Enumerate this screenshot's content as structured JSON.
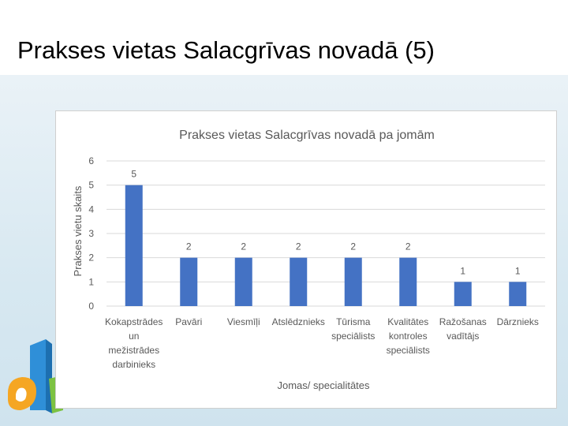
{
  "slide": {
    "title": "Prakses vietas Salacgrīvas novadā (5)"
  },
  "colors": {
    "bar": "#4472c4",
    "grid": "#d9d9d9",
    "axis_text": "#595959",
    "title_text": "#595959"
  },
  "decoration_icon": "colorful-number-graphic-icon",
  "chart_data": {
    "type": "bar",
    "title": "Prakses vietas Salacgrīvas novadā pa jomām",
    "xlabel": "Jomas/ specialitātes",
    "ylabel": "Prakses vietu skaits",
    "ylim": [
      0,
      6
    ],
    "yticks": [
      0,
      1,
      2,
      3,
      4,
      5,
      6
    ],
    "grid": true,
    "legend": "none",
    "categories": [
      "Kokapstrādes un mežistrādes darbinieks",
      "Pavāri",
      "Viesmīļi",
      "Atslēdznieks",
      "Tūrisma speciālists",
      "Kvalitātes kontroles speciālists",
      "Ražošanas vadītājs",
      "Dārznieks"
    ],
    "category_lines": [
      [
        "Kokapstrādes",
        "un",
        "mežistrādes",
        "darbinieks"
      ],
      [
        "Pavāri"
      ],
      [
        "Viesmīļi"
      ],
      [
        "Atslēdznieks"
      ],
      [
        "Tūrisma",
        "speciālists"
      ],
      [
        "Kvalitātes",
        "kontroles",
        "speciālists"
      ],
      [
        "Ražošanas",
        "vadītājs"
      ],
      [
        "Dārznieks"
      ]
    ],
    "values": [
      5,
      2,
      2,
      2,
      2,
      2,
      1,
      1
    ],
    "data_labels": [
      "5",
      "2",
      "2",
      "2",
      "2",
      "2",
      "1",
      "1"
    ]
  }
}
